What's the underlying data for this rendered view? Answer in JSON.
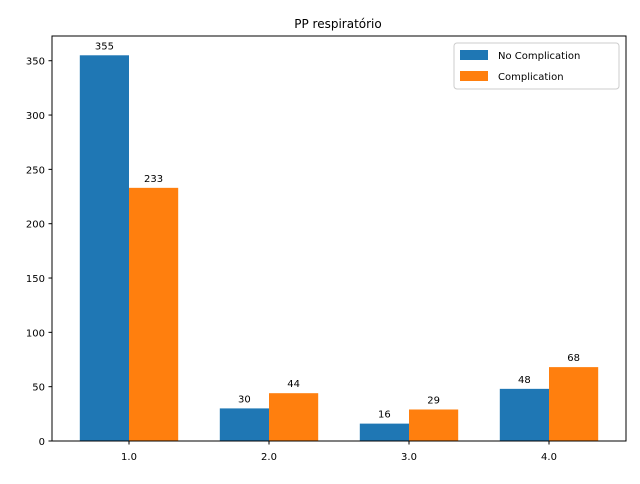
{
  "chart_data": {
    "type": "bar",
    "title": "PP respiratório",
    "xlabel": "",
    "ylabel": "",
    "categories": [
      "1.0",
      "2.0",
      "3.0",
      "4.0"
    ],
    "series": [
      {
        "name": "No Complication",
        "values": [
          355,
          30,
          16,
          48
        ],
        "color": "#1f77b4"
      },
      {
        "name": "Complication",
        "values": [
          233,
          44,
          29,
          68
        ],
        "color": "#ff7f0e"
      }
    ],
    "ylim": [
      0,
      372.75
    ],
    "yticks": [
      0,
      50,
      100,
      150,
      200,
      250,
      300,
      350
    ],
    "grid": false,
    "legend_position": "top-right"
  }
}
